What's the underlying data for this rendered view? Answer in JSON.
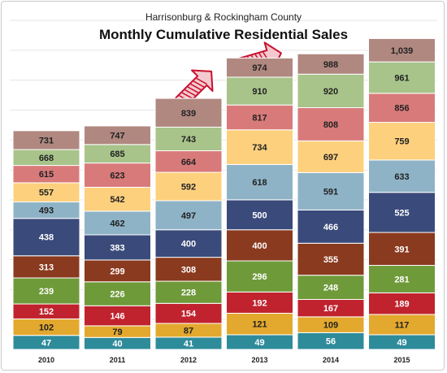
{
  "chart_data": {
    "type": "bar",
    "subtitle": "Harrisonburg & Rockingham County",
    "title": "Monthly Cumulative Residential Sales",
    "categories": [
      "2010",
      "2011",
      "2012",
      "2013",
      "2014",
      "2015"
    ],
    "ylim": [
      0,
      1100
    ],
    "grid": true,
    "stacked_cumulative": [
      [
        47,
        102,
        152,
        239,
        313,
        438,
        493,
        557,
        615,
        668,
        731
      ],
      [
        40,
        79,
        146,
        226,
        299,
        383,
        462,
        542,
        623,
        685,
        747
      ],
      [
        41,
        87,
        154,
        228,
        308,
        400,
        497,
        592,
        664,
        743,
        839
      ],
      [
        49,
        121,
        192,
        296,
        400,
        500,
        618,
        734,
        817,
        910,
        974
      ],
      [
        56,
        109,
        167,
        248,
        355,
        466,
        591,
        697,
        808,
        920,
        988
      ],
      [
        49,
        117,
        189,
        281,
        391,
        525,
        633,
        759,
        856,
        961,
        1039
      ]
    ],
    "segment_colors": [
      "#2e8b9a",
      "#e3a92e",
      "#c0232e",
      "#6f9a3a",
      "#8a3a1f",
      "#3a4a7a",
      "#8fb3c6",
      "#fdd07e",
      "#d97a7a",
      "#a8c48a",
      "#b08880"
    ],
    "label_colors": [
      "#ffffff",
      "#222222",
      "#ffffff",
      "#ffffff",
      "#ffffff",
      "#ffffff",
      "#222222",
      "#222222",
      "#222222",
      "#222222",
      "#222222"
    ],
    "gridline_color": "#e6e6e6",
    "arrow_color": "#c8102e",
    "arrow_icon": "up-right-arrow-icon"
  }
}
